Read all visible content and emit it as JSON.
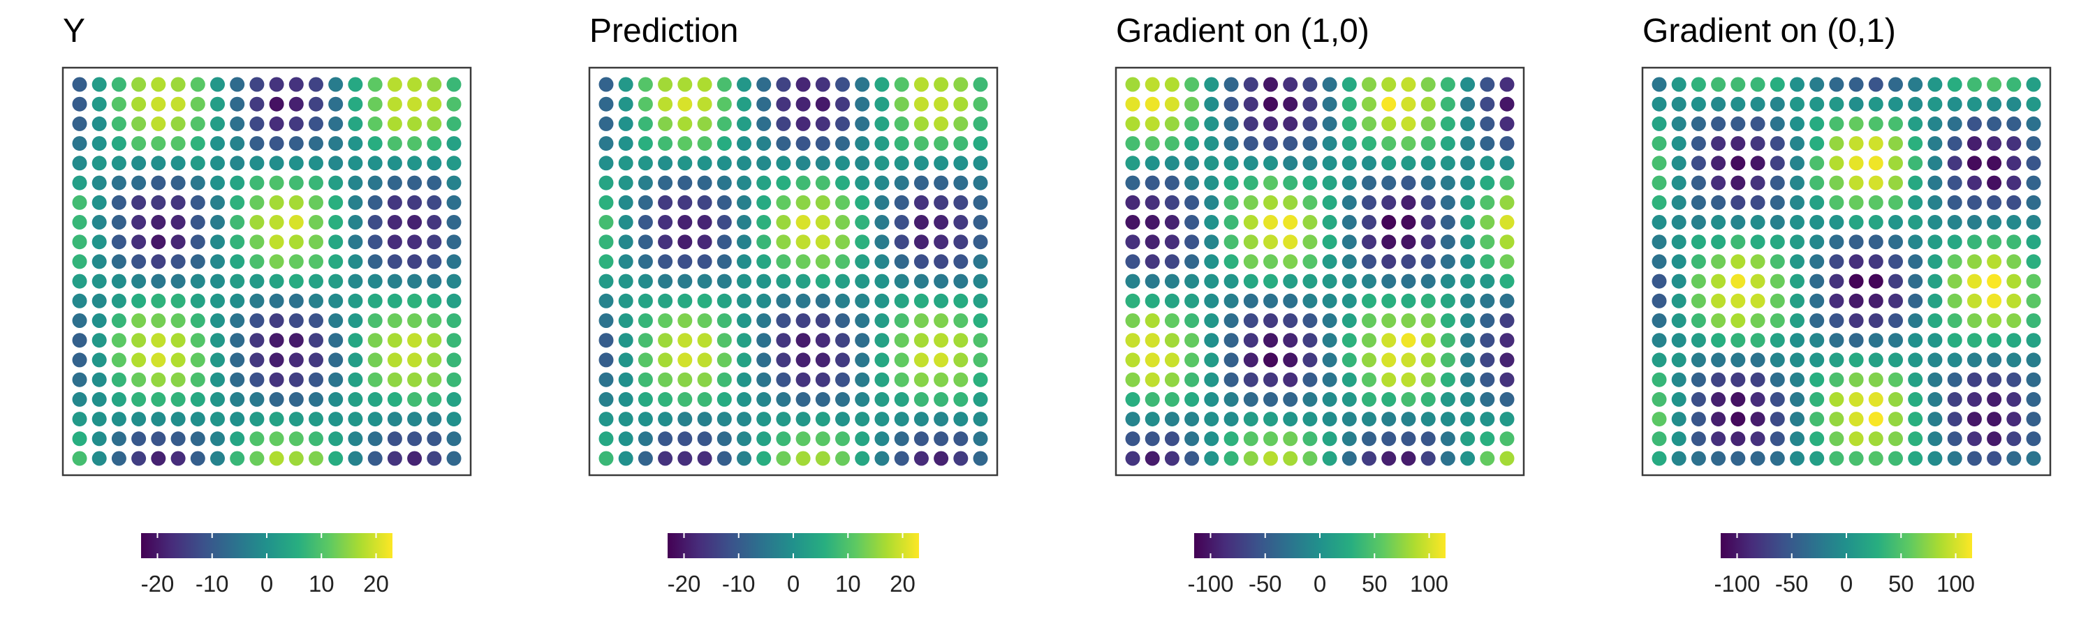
{
  "chart_data": [
    {
      "type": "scatter",
      "title": "Y",
      "grid": "20x20 regular grid, point color encodes value (viridis)",
      "field": "Y = 20*sin(1.5*(u-0.3))*cos(1.5*(v-0.3))",
      "x_range": [
        0,
        19
      ],
      "y_range": [
        0,
        19
      ],
      "colorbar": {
        "ticks": [
          "-20",
          "-10",
          "0",
          "10",
          "20"
        ],
        "range": [
          -23,
          23
        ],
        "palette": "viridis"
      }
    },
    {
      "type": "scatter",
      "title": "Prediction",
      "grid": "20x20 regular grid, point color encodes value (viridis)",
      "field": "Y = 20*sin(1.5*(u-0.3))*cos(1.5*(v-0.3))",
      "x_range": [
        0,
        19
      ],
      "y_range": [
        0,
        19
      ],
      "colorbar": {
        "ticks": [
          "-20",
          "-10",
          "0",
          "10",
          "20"
        ],
        "range": [
          -23,
          23
        ],
        "palette": "viridis"
      }
    },
    {
      "type": "scatter",
      "title": "Gradient on (1,0)",
      "grid": "20x20 regular grid, point color encodes value (viridis)",
      "field": "dY/du = 110*cos(1.5*(u-0.3))*cos(1.5*(v-0.3))",
      "x_range": [
        0,
        19
      ],
      "y_range": [
        0,
        19
      ],
      "colorbar": {
        "ticks": [
          "-100",
          "-50",
          "0",
          "50",
          "100"
        ],
        "range": [
          -115,
          115
        ],
        "palette": "viridis"
      }
    },
    {
      "type": "scatter",
      "title": "Gradient on (0,1)",
      "grid": "20x20 regular grid, point color encodes value (viridis)",
      "field": "dY/dv = -110*sin(1.5*(u-0.3))*sin(1.5*(v-0.3))",
      "x_range": [
        0,
        19
      ],
      "y_range": [
        0,
        19
      ],
      "colorbar": {
        "ticks": [
          "-100",
          "-50",
          "0",
          "50",
          "100"
        ],
        "range": [
          -115,
          115
        ],
        "palette": "viridis"
      }
    }
  ]
}
